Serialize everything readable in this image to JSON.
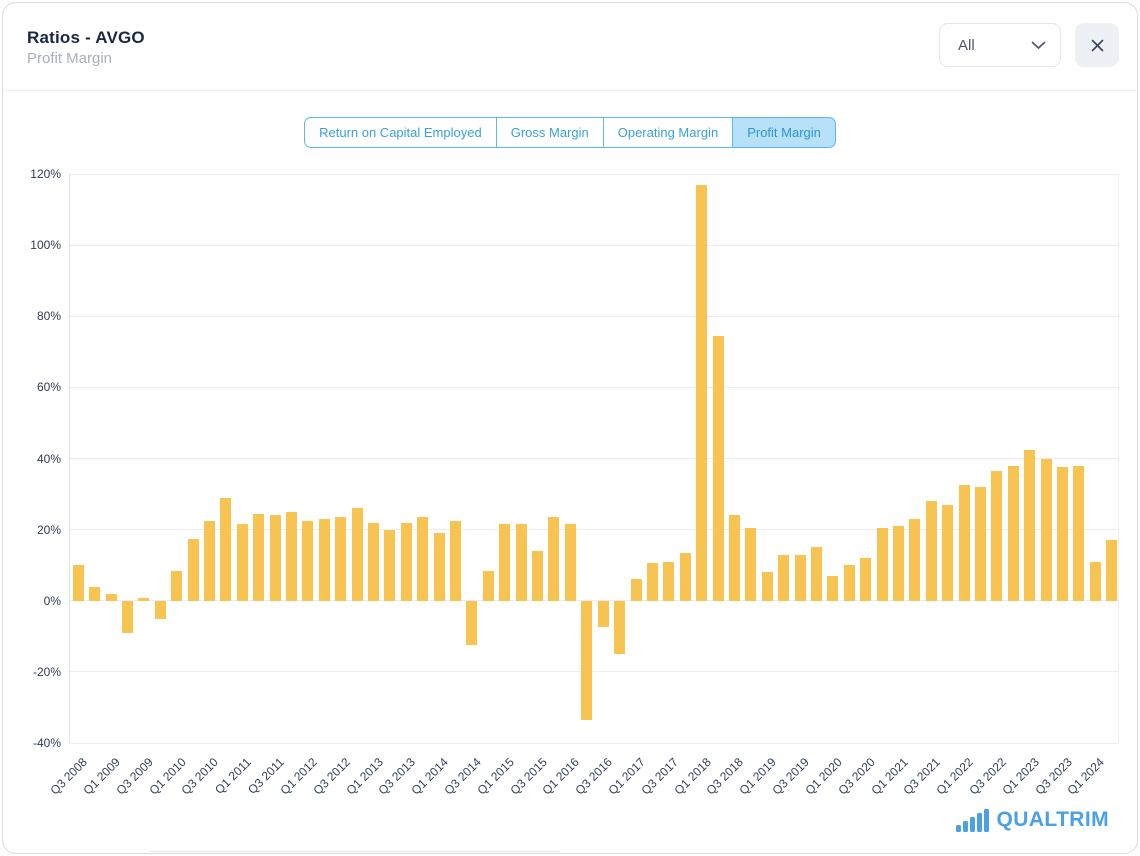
{
  "header": {
    "title": "Ratios - AVGO",
    "subtitle": "Profit Margin"
  },
  "controls": {
    "range_value": "All",
    "range_icon": "chevron-down",
    "close_icon": "x-mark"
  },
  "tabs": {
    "items": [
      {
        "label": "Return on Capital Employed",
        "selected": false
      },
      {
        "label": "Gross Margin",
        "selected": false
      },
      {
        "label": "Operating Margin",
        "selected": false
      },
      {
        "label": "Profit Margin",
        "selected": true
      }
    ]
  },
  "chart_data": {
    "type": "bar",
    "title": "Profit Margin",
    "unit": "%",
    "ylim": [
      -40,
      120
    ],
    "y_ticks": [
      120,
      100,
      80,
      60,
      40,
      20,
      0,
      -20,
      -40
    ],
    "grid": "horizontal",
    "x_label_every": 2,
    "bar_color": "#F8C451",
    "categories": [
      "Q3 2008",
      "Q4 2008",
      "Q1 2009",
      "Q2 2009",
      "Q3 2009",
      "Q4 2009",
      "Q1 2010",
      "Q2 2010",
      "Q3 2010",
      "Q4 2010",
      "Q1 2011",
      "Q2 2011",
      "Q3 2011",
      "Q4 2011",
      "Q1 2012",
      "Q2 2012",
      "Q3 2012",
      "Q4 2012",
      "Q1 2013",
      "Q2 2013",
      "Q3 2013",
      "Q4 2013",
      "Q1 2014",
      "Q2 2014",
      "Q3 2014",
      "Q4 2014",
      "Q1 2015",
      "Q2 2015",
      "Q3 2015",
      "Q4 2015",
      "Q1 2016",
      "Q2 2016",
      "Q3 2016",
      "Q4 2016",
      "Q1 2017",
      "Q2 2017",
      "Q3 2017",
      "Q4 2017",
      "Q1 2018",
      "Q2 2018",
      "Q3 2018",
      "Q4 2018",
      "Q1 2019",
      "Q2 2019",
      "Q3 2019",
      "Q4 2019",
      "Q1 2020",
      "Q2 2020",
      "Q3 2020",
      "Q4 2020",
      "Q1 2021",
      "Q2 2021",
      "Q3 2021",
      "Q4 2021",
      "Q1 2022",
      "Q2 2022",
      "Q3 2022",
      "Q4 2022",
      "Q1 2023",
      "Q2 2023",
      "Q3 2023",
      "Q4 2023",
      "Q1 2024",
      "Q2 2024"
    ],
    "values": [
      10,
      4,
      2,
      -9,
      0.7,
      -5,
      8.5,
      17.5,
      22.5,
      29,
      21.5,
      24.5,
      24,
      25,
      22.5,
      23,
      23.5,
      26,
      22,
      20,
      22,
      23.5,
      19,
      22.5,
      -12.5,
      8.5,
      21.5,
      21.5,
      14,
      23.5,
      21.5,
      -33.5,
      -7.5,
      -15,
      6,
      10.5,
      11,
      13.5,
      117,
      74.5,
      24,
      20.5,
      8,
      13,
      13,
      15,
      7,
      10,
      12,
      20.5,
      21,
      23,
      28,
      27,
      32.5,
      32,
      36.5,
      38,
      42.5,
      40,
      37.5,
      38,
      11,
      17
    ]
  },
  "branding": {
    "logo_icon": "bar-chart",
    "logo_text": "QUALTRIM"
  },
  "colors": {
    "bar": "#F8C451",
    "tab_blue": "#39A1DA",
    "tab_border": "#5CB8E8",
    "tab_selected_bg": "#B7E1F8",
    "logo_blue": "#4BA1E4",
    "title_navy": "#1A2742"
  }
}
